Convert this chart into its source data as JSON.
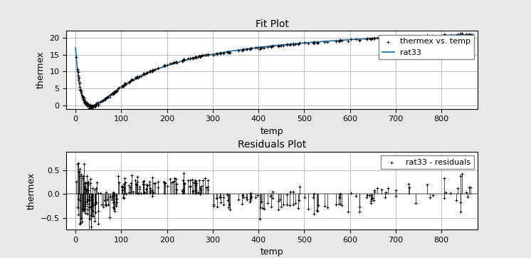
{
  "title_fit": "Fit Plot",
  "title_res": "Residuals Plot",
  "xlabel": "temp",
  "ylabel": "thermex",
  "legend_fit_data": "thermex vs. temp",
  "legend_fit_line": "rat33",
  "legend_res": "rat33 - residuals",
  "fit_xlim": [
    -20,
    880
  ],
  "fit_ylim": [
    -1,
    22
  ],
  "res_xlim": [
    -20,
    880
  ],
  "res_ylim": [
    -0.75,
    0.9
  ],
  "fit_yticks": [
    0,
    5,
    10,
    15,
    20
  ],
  "res_yticks": [
    -0.5,
    0,
    0.5
  ],
  "fit_xticks": [
    0,
    100,
    200,
    300,
    400,
    500,
    600,
    700,
    800
  ],
  "res_xticks": [
    0,
    100,
    200,
    300,
    400,
    500,
    600,
    700,
    800
  ],
  "bg_color": "#e8e8e8",
  "plot_bg_color": "#ffffff",
  "grid_color": "#b0b0b0",
  "data_color": "#000000",
  "fit_line_color": "#0072bd",
  "zero_line_color": "#808080",
  "title_fontsize": 10,
  "label_fontsize": 9,
  "tick_fontsize": 8,
  "legend_fontsize": 8
}
